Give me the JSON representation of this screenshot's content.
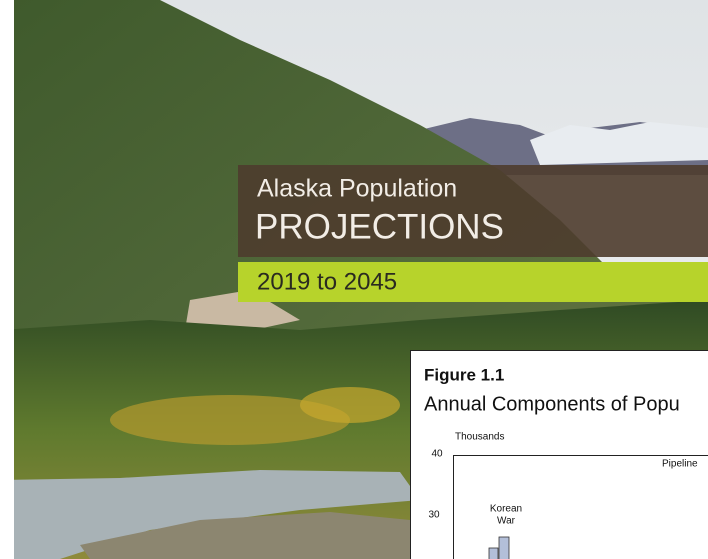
{
  "cover": {
    "title_line1": "Alaska Population",
    "title_line2": "PROJECTIONS",
    "subtitle": "2019 to 2045"
  },
  "figure": {
    "label": "Figure 1.1",
    "title": "Annual Components of Popu",
    "y_axis_label": "Thousands",
    "y_tick_labels": [
      "40",
      "30"
    ],
    "annotations": [
      "Pipeline",
      "Korean",
      "War"
    ]
  }
}
